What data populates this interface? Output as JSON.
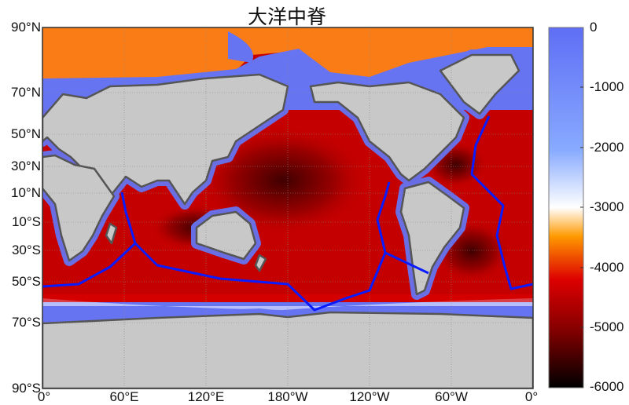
{
  "title": "大洋中脊",
  "map": {
    "projection": "Miller cylindrical",
    "land_color": "#c8c8c8",
    "coastline_color": "#555555",
    "ridge_color": "#0a1cff",
    "lat_labels": [
      "90°N",
      "70°N",
      "50°N",
      "30°N",
      "10°N",
      "10°S",
      "30°S",
      "50°S",
      "70°S",
      "90°S"
    ],
    "lon_labels": [
      "0°",
      "60°E",
      "120°E",
      "180°W",
      "120°W",
      "60°W",
      "0°"
    ]
  },
  "colorbar": {
    "ticks": [
      "0",
      "-1000",
      "-2000",
      "-3000",
      "-4000",
      "-5000",
      "-6000"
    ],
    "range": [
      -6000,
      0
    ],
    "colors": [
      "#000000",
      "#8b0000",
      "#dd0000",
      "#ff9900",
      "#ffffff",
      "#88aaff",
      "#5f6ef5"
    ]
  }
}
